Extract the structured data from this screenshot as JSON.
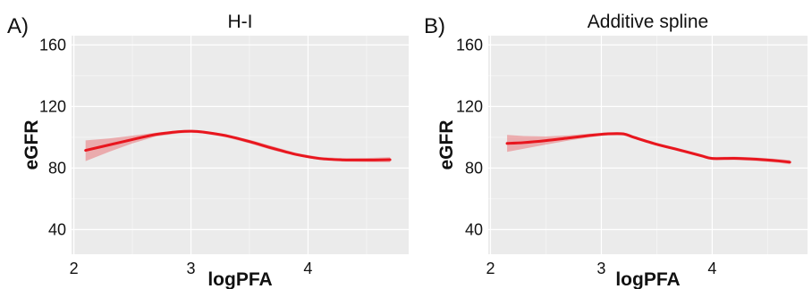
{
  "colors": {
    "line": "#e8161e",
    "band": "#e8161e",
    "band_opacity": 0.3
  },
  "chart_data": [
    {
      "type": "line",
      "panel_label": "A)",
      "title": "H-I",
      "xlabel": "logPFA",
      "ylabel": "eGFR",
      "xlim": [
        1.98,
        4.86
      ],
      "ylim": [
        24,
        166
      ],
      "x_ticks": [
        2,
        3,
        4
      ],
      "y_ticks": [
        40,
        80,
        120,
        160
      ],
      "grid": true,
      "series": [
        {
          "x": [
            2.1,
            2.3,
            2.5,
            2.7,
            2.9,
            3.0,
            3.1,
            3.3,
            3.5,
            3.7,
            3.9,
            4.1,
            4.3,
            4.5,
            4.7
          ],
          "y": [
            91.5,
            95,
            98.5,
            101.8,
            103.6,
            103.9,
            103.4,
            101,
            97.2,
            92.8,
            88.8,
            86.2,
            85.3,
            85.2,
            85.4
          ],
          "lower": [
            84.5,
            90.5,
            96,
            100.5,
            102.6,
            103,
            102.5,
            100,
            96,
            91.5,
            87.8,
            85.2,
            84.2,
            83.9,
            83.8
          ],
          "upper": [
            98,
            99.2,
            101,
            103,
            104.6,
            104.8,
            104.3,
            102,
            98.4,
            94.1,
            89.8,
            87.2,
            86.4,
            86.5,
            87
          ]
        }
      ]
    },
    {
      "type": "line",
      "panel_label": "B)",
      "title": "Additive spline",
      "xlabel": "logPFA",
      "ylabel": "eGFR",
      "xlim": [
        1.98,
        4.86
      ],
      "ylim": [
        24,
        166
      ],
      "x_ticks": [
        2,
        3,
        4
      ],
      "y_ticks": [
        40,
        80,
        120,
        160
      ],
      "grid": true,
      "series": [
        {
          "x": [
            2.15,
            2.3,
            2.5,
            2.7,
            2.9,
            3.05,
            3.2,
            3.3,
            3.5,
            3.7,
            3.9,
            4.0,
            4.2,
            4.4,
            4.6,
            4.7
          ],
          "y": [
            96,
            96.5,
            97.8,
            99.5,
            101.2,
            102.2,
            102.2,
            99.8,
            95.4,
            91.8,
            88,
            86.2,
            86.3,
            85.7,
            84.6,
            83.8
          ],
          "lower": [
            90.5,
            92.5,
            95.2,
            97.8,
            100,
            101.2,
            101.2,
            98.8,
            94.4,
            90.8,
            87,
            85.2,
            85.2,
            84.6,
            83.4,
            82.4
          ],
          "upper": [
            101.5,
            100.8,
            100.5,
            101.2,
            102.4,
            103.2,
            103.2,
            100.8,
            96.4,
            92.8,
            89,
            87.2,
            87.4,
            86.8,
            85.8,
            85.2
          ]
        }
      ]
    }
  ]
}
